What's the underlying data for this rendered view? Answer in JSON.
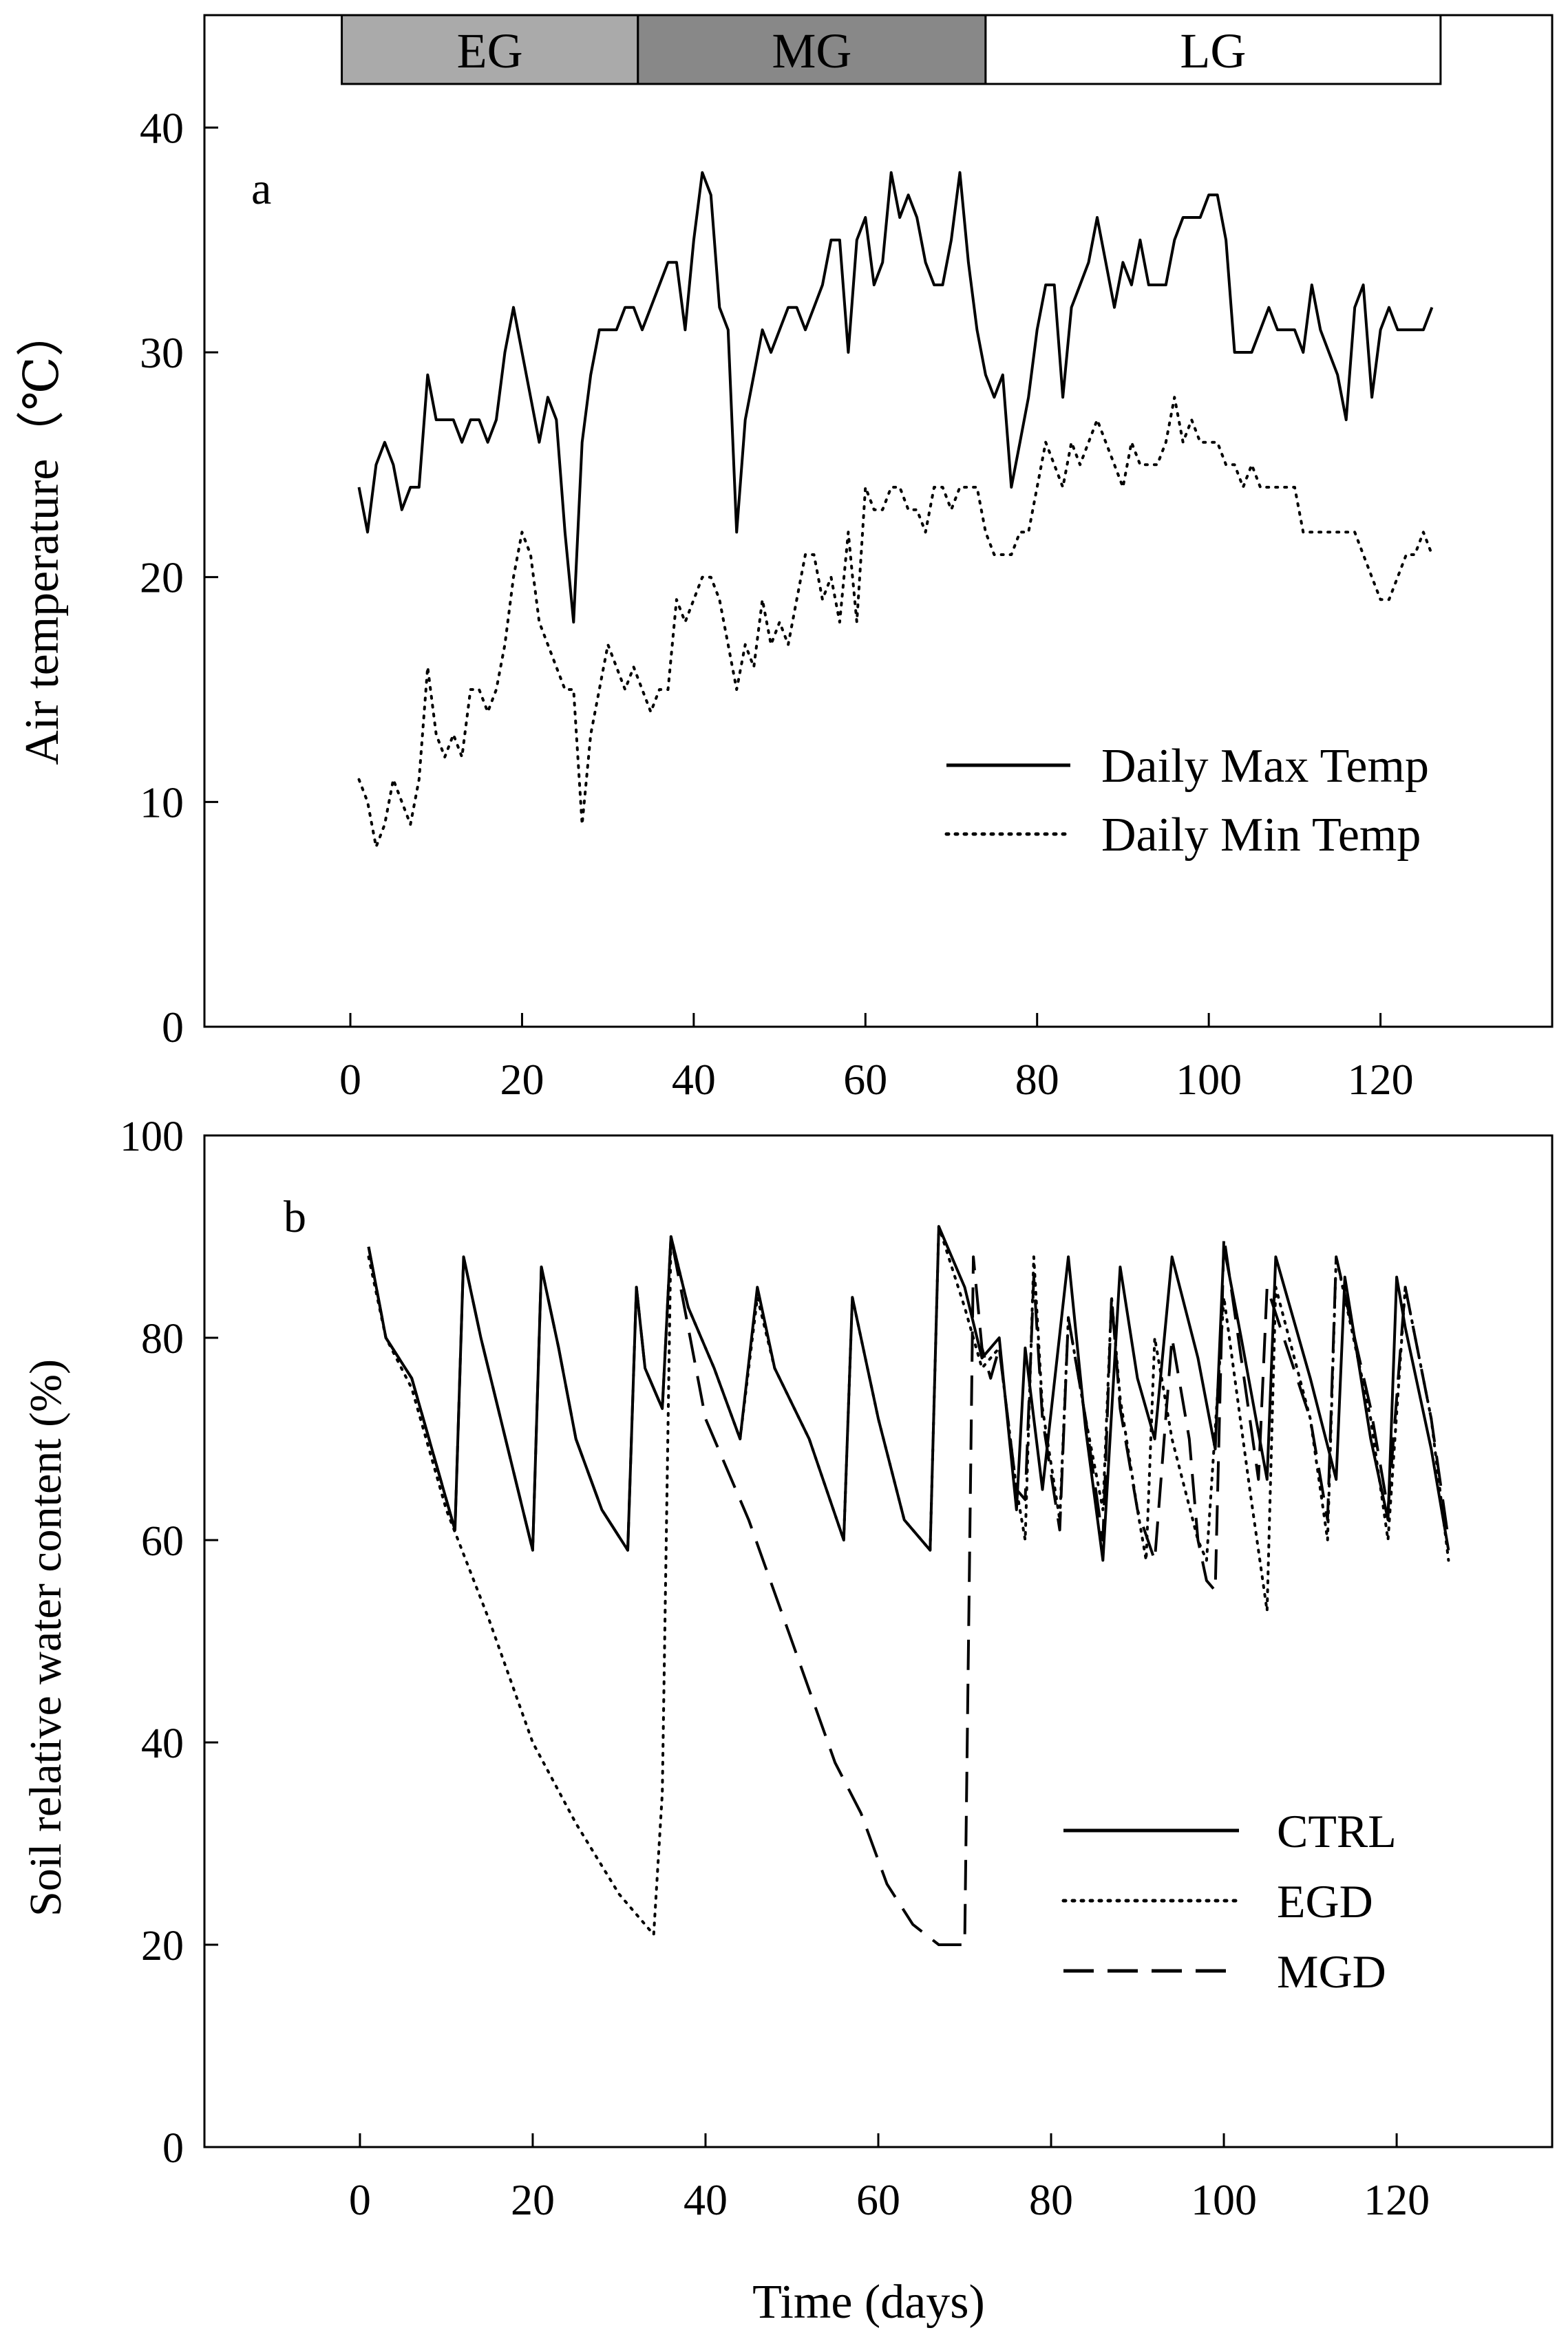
{
  "chart_data": [
    {
      "type": "line",
      "panel_label": "a",
      "xlabel": "",
      "ylabel": "Air temperature（℃）",
      "xlim": [
        -17,
        140
      ],
      "ylim": [
        0,
        45
      ],
      "xticks": [
        0,
        20,
        40,
        60,
        80,
        100,
        120
      ],
      "yticks": [
        0,
        10,
        20,
        30,
        40
      ],
      "legend_position": "center-right",
      "stage_bar": [
        {
          "label": "EG",
          "start": -1,
          "end": 33.5,
          "color": "#aaaaaa"
        },
        {
          "label": "MG",
          "start": 33.5,
          "end": 74,
          "color": "#888888"
        },
        {
          "label": "LG",
          "start": 74,
          "end": 127,
          "color": "#ffffff"
        }
      ],
      "series": [
        {
          "name": "Daily Max Temp",
          "style": "solid",
          "x": [
            1,
            2,
            3,
            4,
            5,
            6,
            7,
            8,
            9,
            10,
            11,
            12,
            13,
            14,
            15,
            16,
            17,
            18,
            19,
            20,
            21,
            22,
            23,
            24,
            25,
            26,
            27,
            28,
            29,
            30,
            31,
            32,
            33,
            34,
            35,
            36,
            37,
            38,
            39,
            40,
            41,
            42,
            43,
            44,
            45,
            46,
            47,
            48,
            49,
            50,
            51,
            52,
            53,
            54,
            55,
            56,
            57,
            58,
            59,
            60,
            61,
            62,
            63,
            64,
            65,
            66,
            67,
            68,
            69,
            70,
            71,
            72,
            73,
            74,
            75,
            76,
            77,
            78,
            79,
            80,
            81,
            82,
            83,
            84,
            85,
            86,
            87,
            88,
            89,
            90,
            91,
            92,
            93,
            94,
            95,
            96,
            97,
            98,
            99,
            100,
            101,
            102,
            103,
            104,
            105,
            106,
            107,
            108,
            109,
            110,
            111,
            112,
            113,
            114,
            115,
            116,
            117,
            118,
            119,
            120,
            121,
            122,
            123,
            124,
            125,
            126
          ],
          "values": [
            24,
            22,
            25,
            26,
            25,
            23,
            24,
            24,
            29,
            27,
            27,
            27,
            26,
            27,
            27,
            26,
            27,
            30,
            32,
            30,
            28,
            26,
            28,
            27,
            22,
            18,
            26,
            29,
            31,
            31,
            31,
            32,
            32,
            31,
            32,
            33,
            34,
            34,
            31,
            35,
            38,
            37,
            32,
            31,
            22,
            27,
            29,
            31,
            30,
            31,
            32,
            32,
            31,
            32,
            33,
            35,
            35,
            30,
            35,
            36,
            33,
            34,
            38,
            36,
            37,
            36,
            34,
            33,
            33,
            35,
            38,
            34,
            31,
            29,
            28,
            29,
            24,
            26,
            28,
            31,
            33,
            33,
            28,
            32,
            33,
            34,
            36,
            34,
            32,
            34,
            33,
            35,
            33,
            33,
            33,
            35,
            36,
            36,
            36,
            37,
            37,
            35,
            30,
            30,
            30,
            31,
            32,
            31,
            31,
            31,
            30,
            33,
            31,
            30,
            29,
            27,
            32,
            33,
            28,
            31,
            32,
            31,
            31,
            31,
            31,
            32
          ]
        },
        {
          "name": "Daily Min Temp",
          "style": "dotted",
          "x": [
            1,
            2,
            3,
            4,
            5,
            6,
            7,
            8,
            9,
            10,
            11,
            12,
            13,
            14,
            15,
            16,
            17,
            18,
            19,
            20,
            21,
            22,
            23,
            24,
            25,
            26,
            27,
            28,
            29,
            30,
            31,
            32,
            33,
            34,
            35,
            36,
            37,
            38,
            39,
            40,
            41,
            42,
            43,
            44,
            45,
            46,
            47,
            48,
            49,
            50,
            51,
            52,
            53,
            54,
            55,
            56,
            57,
            58,
            59,
            60,
            61,
            62,
            63,
            64,
            65,
            66,
            67,
            68,
            69,
            70,
            71,
            72,
            73,
            74,
            75,
            76,
            77,
            78,
            79,
            80,
            81,
            82,
            83,
            84,
            85,
            86,
            87,
            88,
            89,
            90,
            91,
            92,
            93,
            94,
            95,
            96,
            97,
            98,
            99,
            100,
            101,
            102,
            103,
            104,
            105,
            106,
            107,
            108,
            109,
            110,
            111,
            112,
            113,
            114,
            115,
            116,
            117,
            118,
            119,
            120,
            121,
            122,
            123,
            124,
            125,
            126
          ],
          "values": [
            11,
            10,
            8,
            9,
            11,
            10,
            9,
            11,
            16,
            13,
            12,
            13,
            12,
            15,
            15,
            14,
            15,
            17,
            20,
            22,
            21,
            18,
            17,
            16,
            15,
            15,
            9,
            13,
            15,
            17,
            16,
            15,
            16,
            15,
            14,
            15,
            15,
            19,
            18,
            19,
            20,
            20,
            19,
            17,
            15,
            17,
            16,
            19,
            17,
            18,
            17,
            19,
            21,
            21,
            19,
            20,
            18,
            22,
            18,
            24,
            23,
            23,
            24,
            24,
            23,
            23,
            22,
            24,
            24,
            23,
            24,
            24,
            24,
            22,
            21,
            21,
            21,
            22,
            22,
            24,
            26,
            25,
            24,
            26,
            25,
            26,
            27,
            26,
            25,
            24,
            26,
            25,
            25,
            25,
            26,
            28,
            26,
            27,
            26,
            26,
            26,
            25,
            25,
            24,
            25,
            24,
            24,
            24,
            24,
            24,
            22,
            22,
            22,
            22,
            22,
            22,
            22,
            21,
            20,
            19,
            19,
            20,
            21,
            21,
            22,
            21
          ]
        }
      ]
    },
    {
      "type": "line",
      "panel_label": "b",
      "xlabel": "Time (days)",
      "ylabel": "Soil relative water content (%)",
      "xlim": [
        -18,
        138
      ],
      "ylim": [
        0,
        100
      ],
      "xticks": [
        0,
        20,
        40,
        60,
        80,
        100,
        120
      ],
      "yticks": [
        0,
        20,
        40,
        60,
        80,
        100
      ],
      "legend_position": "lower-right",
      "series": [
        {
          "name": "CTRL",
          "style": "solid",
          "x": [
            1,
            3,
            6,
            10,
            11,
            12,
            14,
            16,
            20,
            21,
            23,
            25,
            28,
            31,
            32,
            33,
            35,
            36,
            38,
            41,
            44,
            46,
            48,
            52,
            56,
            57,
            60,
            63,
            66,
            67,
            70,
            72,
            74,
            76,
            77,
            79,
            82,
            84,
            86,
            88,
            90,
            92,
            94,
            97,
            99,
            100,
            102,
            105,
            106,
            110,
            113,
            114,
            117,
            119,
            120,
            121,
            124,
            126
          ],
          "values": [
            89,
            80,
            76,
            64,
            61,
            88,
            80,
            73,
            59,
            87,
            79,
            70,
            63,
            59,
            85,
            77,
            73,
            90,
            83,
            77,
            70,
            85,
            77,
            70,
            60,
            84,
            72,
            62,
            59,
            91,
            85,
            78,
            80,
            63,
            79,
            65,
            88,
            71,
            58,
            87,
            76,
            70,
            88,
            78,
            69,
            89,
            80,
            66,
            88,
            76,
            66,
            86,
            70,
            62,
            86,
            81,
            69,
            59
          ]
        },
        {
          "name": "EGD",
          "style": "dotted",
          "x": [
            1,
            3,
            6,
            10,
            15,
            20,
            25,
            30,
            34,
            35,
            36,
            38,
            41,
            44,
            46,
            48,
            52,
            56,
            57,
            60,
            63,
            66,
            67,
            70,
            72,
            74,
            76,
            77,
            78,
            79,
            81,
            82,
            84,
            86,
            87,
            88,
            90,
            91,
            92,
            94,
            97,
            98,
            100,
            103,
            105,
            106,
            110,
            112,
            113,
            117,
            119,
            121,
            124,
            126
          ],
          "values": [
            88,
            80,
            75,
            63,
            52,
            40,
            32,
            25,
            21,
            35,
            90,
            83,
            77,
            70,
            84,
            77,
            70,
            60,
            84,
            72,
            62,
            59,
            91,
            83,
            77,
            79,
            65,
            60,
            88,
            73,
            62,
            82,
            72,
            63,
            84,
            74,
            63,
            58,
            80,
            70,
            60,
            58,
            84,
            65,
            53,
            85,
            72,
            60,
            88,
            72,
            60,
            85,
            72,
            58
          ]
        },
        {
          "name": "MGD",
          "style": "dashed",
          "x": [
            1,
            3,
            6,
            10,
            11,
            12,
            14,
            16,
            20,
            21,
            23,
            25,
            28,
            31,
            32,
            33,
            35,
            36,
            40,
            45,
            50,
            55,
            58,
            61,
            64,
            67,
            69,
            70,
            71,
            72,
            73,
            74,
            76,
            77,
            78,
            79,
            81,
            82,
            84,
            86,
            87,
            88,
            90,
            92,
            94,
            96,
            97,
            98,
            99,
            100,
            102,
            104,
            105,
            110,
            112,
            113,
            117,
            119,
            121,
            124,
            126
          ],
          "values": [
            89,
            80,
            76,
            64,
            61,
            88,
            80,
            73,
            59,
            87,
            79,
            70,
            63,
            59,
            85,
            77,
            73,
            90,
            72,
            62,
            50,
            38,
            33,
            26,
            22,
            20,
            20,
            20,
            88,
            79,
            76,
            79,
            65,
            64,
            86,
            72,
            61,
            82,
            72,
            60,
            84,
            73,
            63,
            58,
            80,
            70,
            60,
            56,
            55,
            90,
            78,
            66,
            85,
            72,
            62,
            88,
            73,
            63,
            85,
            72,
            60
          ]
        }
      ]
    }
  ]
}
